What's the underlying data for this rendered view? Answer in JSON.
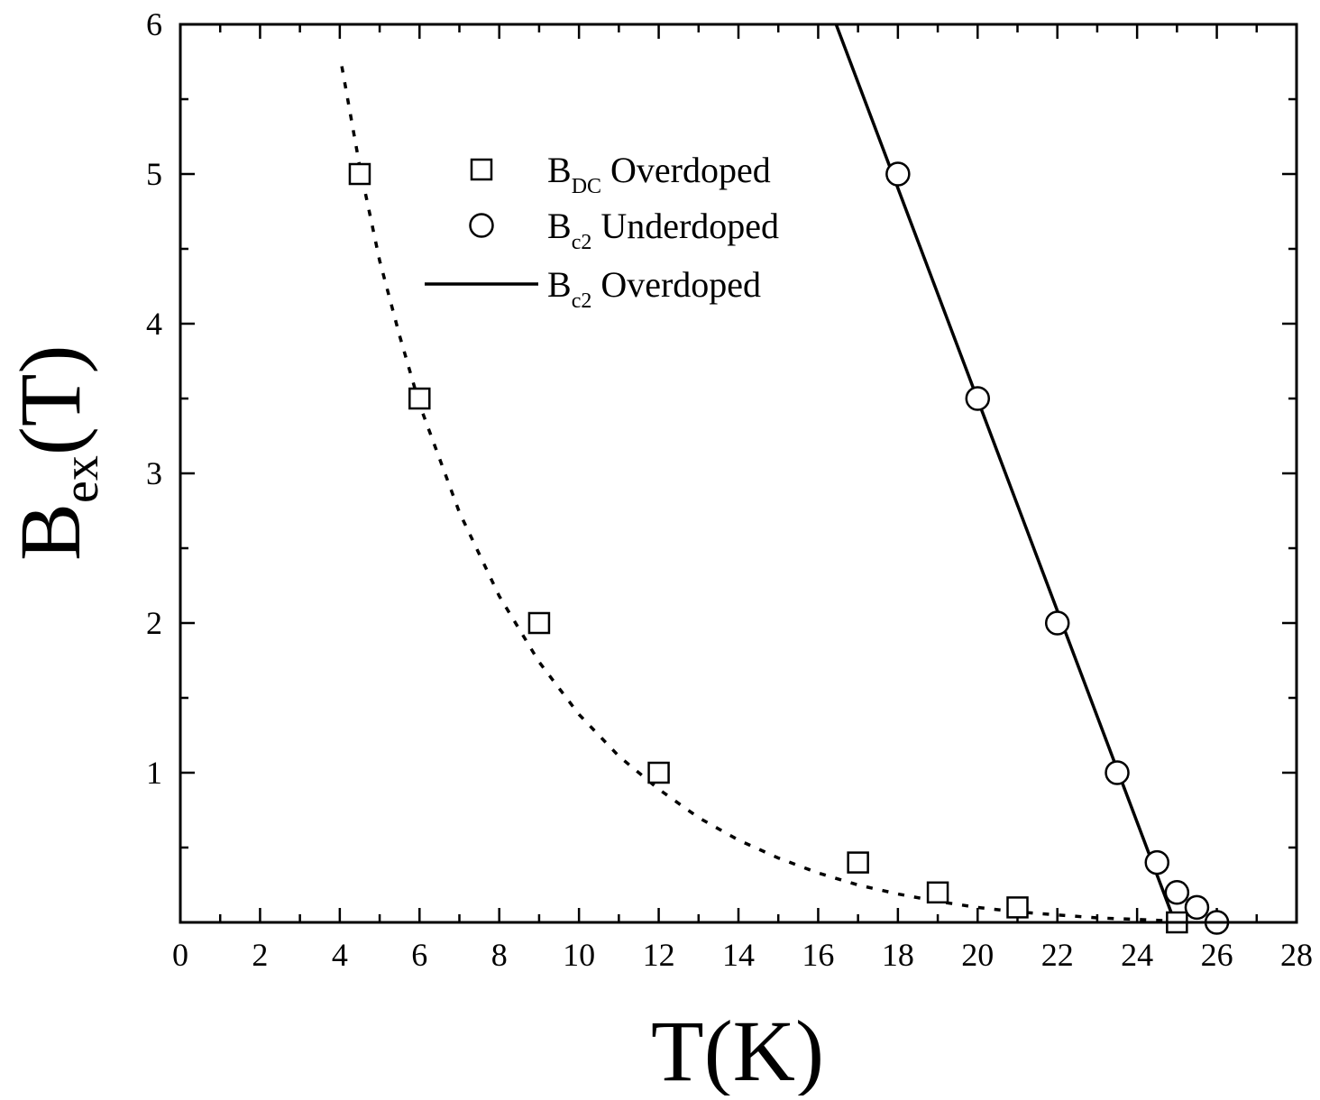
{
  "chart_data": {
    "type": "scatter",
    "xlabel": "T(K)",
    "xlabel_parts": {
      "main": "T(K)"
    },
    "ylabel_parts": {
      "base": "B",
      "sub": "ex",
      "rest": "(T)"
    },
    "xlim": [
      0,
      28
    ],
    "ylim": [
      0,
      6
    ],
    "x_ticks": [
      0,
      2,
      4,
      6,
      8,
      10,
      12,
      14,
      16,
      18,
      20,
      22,
      24,
      26,
      28
    ],
    "y_ticks": [
      1,
      2,
      3,
      4,
      5,
      6
    ],
    "legend_position": "upper-center",
    "series": [
      {
        "name": "B_DC Overdoped",
        "name_parts": {
          "base": "B",
          "sub": "DC",
          "rest": " Overdoped"
        },
        "marker": "open-square",
        "x": [
          4.5,
          6,
          9,
          12,
          17,
          19,
          21,
          25
        ],
        "y": [
          5.0,
          3.5,
          2.0,
          1.0,
          0.4,
          0.2,
          0.1,
          0.0
        ]
      },
      {
        "name": "B_c2 Underdoped",
        "name_parts": {
          "base": "B",
          "sub": "c2",
          "rest": " Underdoped"
        },
        "marker": "open-circle",
        "x": [
          18,
          20,
          22,
          23.5,
          24.5,
          25,
          25.5,
          26
        ],
        "y": [
          5.0,
          3.5,
          2.0,
          1.0,
          0.4,
          0.2,
          0.1,
          0.0
        ]
      },
      {
        "name": "B_c2 Overdoped",
        "name_parts": {
          "base": "B",
          "sub": "c2",
          "rest": " Overdoped"
        },
        "style": "solid-line",
        "x": [
          16.45,
          24.95
        ],
        "y": [
          6.0,
          0.0
        ]
      }
    ],
    "unlabeled_curves": [
      {
        "style": "dotted-line",
        "x": [
          4.05,
          4.5,
          5,
          5.5,
          6,
          7,
          8,
          9,
          10,
          11,
          12,
          13,
          14,
          15,
          16,
          17,
          18,
          19,
          20,
          21,
          22,
          23,
          24,
          24.8
        ],
        "y": [
          5.72,
          5.05,
          4.42,
          3.92,
          3.46,
          2.74,
          2.18,
          1.74,
          1.39,
          1.11,
          0.89,
          0.7,
          0.55,
          0.43,
          0.33,
          0.25,
          0.19,
          0.14,
          0.1,
          0.07,
          0.05,
          0.03,
          0.02,
          0.01
        ]
      }
    ]
  }
}
